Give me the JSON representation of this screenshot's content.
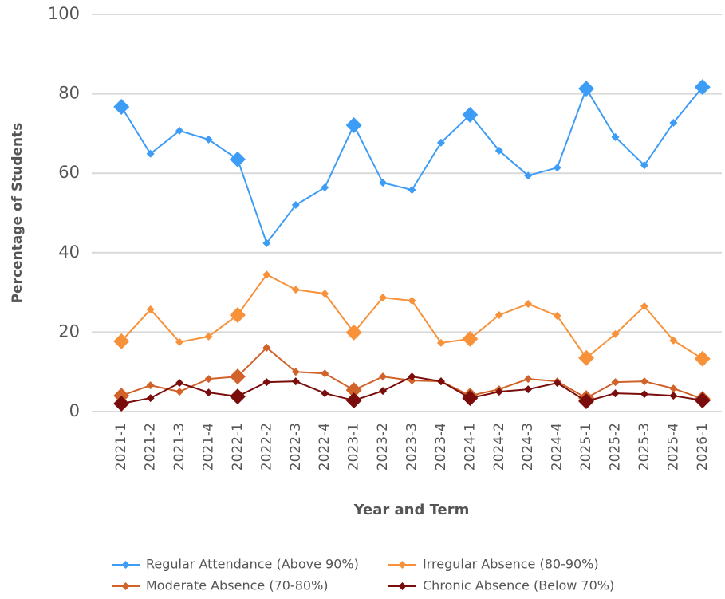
{
  "chart_data": {
    "type": "line",
    "x_label": "Year and Term",
    "y_label": "Percentage of Students",
    "categories": [
      "2021-1",
      "2021-2",
      "2021-3",
      "2021-4",
      "2022-1",
      "2022-2",
      "2022-3",
      "2022-4",
      "2023-1",
      "2023-2",
      "2023-3",
      "2023-4",
      "2024-1",
      "2024-2",
      "2024-3",
      "2024-4",
      "2025-1",
      "2025-2",
      "2025-3",
      "2025-4",
      "2026-1"
    ],
    "series": [
      {
        "name": "Regular Attendance (Above 90%)",
        "color": "#3d9cf5",
        "values": [
          76.7,
          64.9,
          70.7,
          68.5,
          63.5,
          42.4,
          52.0,
          56.4,
          72.1,
          57.6,
          55.8,
          67.7,
          74.7,
          65.7,
          59.4,
          61.4,
          81.3,
          69.1,
          62.0,
          72.7,
          81.7
        ]
      },
      {
        "name": "Irregular Absence (80-90%)",
        "color": "#f7913a",
        "values": [
          17.7,
          25.7,
          17.5,
          18.9,
          24.3,
          34.5,
          30.7,
          29.7,
          19.9,
          28.7,
          27.9,
          17.3,
          18.3,
          24.3,
          27.1,
          24.1,
          13.5,
          19.5,
          26.5,
          17.9,
          13.3
        ]
      },
      {
        "name": "Moderate Absence (70-80%)",
        "color": "#d0622a",
        "values": [
          4.0,
          6.6,
          5.0,
          8.2,
          8.8,
          16.1,
          10.0,
          9.6,
          5.4,
          8.8,
          7.8,
          7.6,
          4.0,
          5.6,
          8.2,
          7.6,
          3.4,
          7.4,
          7.6,
          5.8,
          3.2
        ]
      },
      {
        "name": "Chronic Absence (Below 70%)",
        "color": "#7a0c0c",
        "values": [
          2.0,
          3.4,
          7.2,
          4.8,
          3.8,
          7.4,
          7.6,
          4.6,
          2.8,
          5.2,
          8.8,
          7.6,
          3.4,
          5.0,
          5.6,
          7.2,
          2.6,
          4.6,
          4.4,
          4.0,
          2.8
        ]
      }
    ],
    "ylim": [
      0,
      100
    ],
    "yticks": [
      0,
      20,
      40,
      60,
      80,
      100
    ],
    "grid": true
  }
}
